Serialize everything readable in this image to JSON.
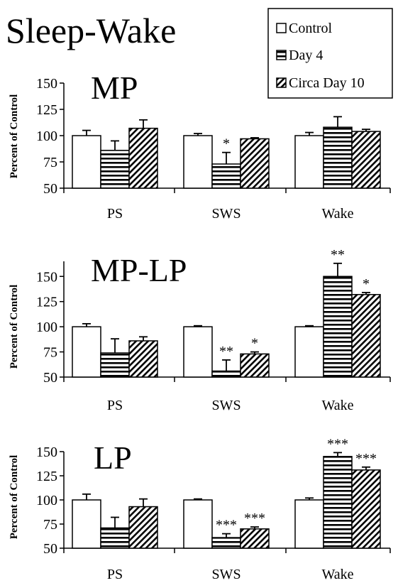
{
  "figure": {
    "title": "Sleep-Wake",
    "ylabel": "Percent of Control",
    "legend": {
      "placement": "top-right",
      "entries": [
        {
          "name": "Control",
          "pattern": "solid-white"
        },
        {
          "name": "Day 4",
          "pattern": "horizontal-stripes"
        },
        {
          "name": "Circa Day 10",
          "pattern": "diagonal-hatch"
        }
      ]
    },
    "colors": {
      "ink": "#000000",
      "fill": "#ffffff"
    }
  },
  "chart_data": [
    {
      "type": "bar",
      "title": "MP",
      "ylabel": "Percent of Control",
      "categories": [
        "PS",
        "SWS",
        "Wake"
      ],
      "ylim": [
        50,
        150
      ],
      "yticks": [
        "50",
        "75",
        "100",
        "125",
        "150"
      ],
      "grid": false,
      "series": [
        {
          "name": "Control",
          "values": [
            100,
            100,
            100
          ],
          "errors": [
            5,
            2,
            3
          ]
        },
        {
          "name": "Day 4",
          "values": [
            86,
            73,
            108
          ],
          "errors": [
            9,
            11,
            10
          ]
        },
        {
          "name": "Circa Day 10",
          "values": [
            107,
            97,
            104
          ],
          "errors": [
            8,
            1,
            2
          ]
        }
      ],
      "annotations": [
        {
          "category": "SWS",
          "series": "Day 4",
          "text": "*"
        }
      ]
    },
    {
      "type": "bar",
      "title": "MP-LP",
      "ylabel": "Percent of Control",
      "categories": [
        "PS",
        "SWS",
        "Wake"
      ],
      "ylim": [
        50,
        165
      ],
      "yticks": [
        "50",
        "75",
        "100",
        "125",
        "150"
      ],
      "grid": false,
      "series": [
        {
          "name": "Control",
          "values": [
            100,
            100,
            100
          ],
          "errors": [
            3,
            1,
            1
          ]
        },
        {
          "name": "Day 4",
          "values": [
            74,
            56,
            150
          ],
          "errors": [
            14,
            11,
            13
          ]
        },
        {
          "name": "Circa Day 10",
          "values": [
            86,
            73,
            132
          ],
          "errors": [
            4,
            2,
            2
          ]
        }
      ],
      "annotations": [
        {
          "category": "SWS",
          "series": "Day 4",
          "text": "**"
        },
        {
          "category": "SWS",
          "series": "Circa Day 10",
          "text": "*"
        },
        {
          "category": "Wake",
          "series": "Day 4",
          "text": "**"
        },
        {
          "category": "Wake",
          "series": "Circa Day 10",
          "text": "*"
        }
      ]
    },
    {
      "type": "bar",
      "title": "LP",
      "ylabel": "Percent of Control",
      "categories": [
        "PS",
        "SWS",
        "Wake"
      ],
      "ylim": [
        50,
        150
      ],
      "yticks": [
        "50",
        "75",
        "100",
        "125",
        "150"
      ],
      "grid": false,
      "series": [
        {
          "name": "Control",
          "values": [
            100,
            100,
            100
          ],
          "errors": [
            6,
            1,
            2
          ]
        },
        {
          "name": "Day 4",
          "values": [
            71,
            61,
            145
          ],
          "errors": [
            11,
            4,
            4
          ]
        },
        {
          "name": "Circa Day 10",
          "values": [
            93,
            70,
            131
          ],
          "errors": [
            8,
            2,
            3
          ]
        }
      ],
      "annotations": [
        {
          "category": "SWS",
          "series": "Day 4",
          "text": "***"
        },
        {
          "category": "SWS",
          "series": "Circa Day 10",
          "text": "***"
        },
        {
          "category": "Wake",
          "series": "Day 4",
          "text": "***"
        },
        {
          "category": "Wake",
          "series": "Circa Day 10",
          "text": "***"
        }
      ]
    }
  ]
}
